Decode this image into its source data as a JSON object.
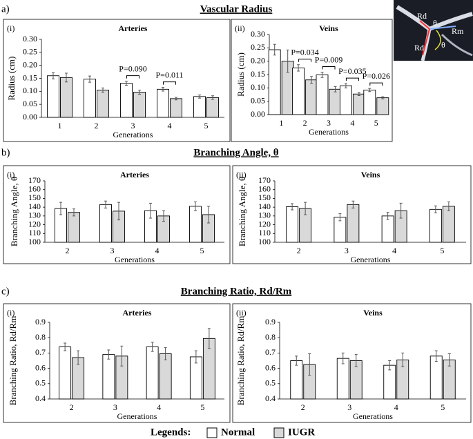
{
  "sections": [
    {
      "label": "a)",
      "title": "Vascular Radius"
    },
    {
      "label": "b)",
      "title": "Branching Angle, θ"
    },
    {
      "label": "c)",
      "title": "Branching Ratio, Rd/Rm"
    }
  ],
  "inset": {
    "labels": [
      "Rd",
      "θ",
      "Rm",
      "Rd",
      "θ"
    ]
  },
  "legend": {
    "title": "Legends:"
  },
  "chart_data": [
    {
      "type": "bar",
      "panel_label": "(i)",
      "title": "Arteries",
      "ylabel": "Radius (cm)",
      "xlabel": "Generations",
      "categories": [
        "1",
        "2",
        "3",
        "4",
        "5"
      ],
      "series": [
        {
          "name": "Normal",
          "color": "#ffffff",
          "values": [
            0.16,
            0.147,
            0.131,
            0.108,
            0.08
          ],
          "errors": [
            0.012,
            0.012,
            0.008,
            0.007,
            0.006
          ]
        },
        {
          "name": "IUGR",
          "color": "#d9d9d9",
          "values": [
            0.153,
            0.105,
            0.097,
            0.072,
            0.076
          ],
          "errors": [
            0.017,
            0.008,
            0.008,
            0.005,
            0.007
          ]
        }
      ],
      "ylim": [
        0,
        0.3
      ],
      "yticks": [
        {
          "value": 0,
          "label": "0.00"
        },
        {
          "value": 0.05,
          "label": "0.05"
        },
        {
          "value": 0.1,
          "label": "0.10"
        },
        {
          "value": 0.15,
          "label": "0.15"
        },
        {
          "value": 0.2,
          "label": "0.20"
        },
        {
          "value": 0.25,
          "label": "0.25"
        },
        {
          "value": 0.3,
          "label": "0.30"
        }
      ],
      "annotations": [
        {
          "x": "3",
          "text": "P=0.090"
        },
        {
          "x": "4",
          "text": "P=0.011"
        }
      ]
    },
    {
      "type": "bar",
      "panel_label": "(ii)",
      "title": "Veins",
      "ylabel": "Radius (cm)",
      "xlabel": "Generations",
      "categories": [
        "1",
        "2",
        "3",
        "4",
        "5"
      ],
      "series": [
        {
          "name": "Normal",
          "color": "#ffffff",
          "values": [
            0.243,
            0.175,
            0.149,
            0.108,
            0.092
          ],
          "errors": [
            0.02,
            0.012,
            0.01,
            0.008,
            0.006
          ]
        },
        {
          "name": "IUGR",
          "color": "#d9d9d9",
          "values": [
            0.2,
            0.13,
            0.095,
            0.077,
            0.063
          ],
          "errors": [
            0.042,
            0.013,
            0.01,
            0.006,
            0.004
          ]
        }
      ],
      "ylim": [
        0,
        0.3
      ],
      "yticks": [
        {
          "value": 0,
          "label": "0.00"
        },
        {
          "value": 0.05,
          "label": "0.05"
        },
        {
          "value": 0.1,
          "label": "0.10"
        },
        {
          "value": 0.15,
          "label": "0.15"
        },
        {
          "value": 0.2,
          "label": "0.20"
        },
        {
          "value": 0.25,
          "label": "0.25"
        },
        {
          "value": 0.3,
          "label": "0.30"
        }
      ],
      "annotations": [
        {
          "x": "2",
          "text": "P=0.034"
        },
        {
          "x": "3",
          "text": "P=0.009"
        },
        {
          "x": "4",
          "text": "P=0.035"
        },
        {
          "x": "5",
          "text": "P=0.026"
        }
      ]
    },
    {
      "type": "bar",
      "panel_label": "(i)",
      "title": "Arteries",
      "ylabel": "Branching Angle, θ",
      "xlabel": "Generations",
      "categories": [
        "2",
        "3",
        "4",
        "5"
      ],
      "series": [
        {
          "name": "Normal",
          "color": "#ffffff",
          "values": [
            138.5,
            143,
            136,
            141
          ],
          "errors": [
            7,
            4,
            8.5,
            5
          ]
        },
        {
          "name": "IUGR",
          "color": "#d9d9d9",
          "values": [
            134,
            135.5,
            130,
            131.5
          ],
          "errors": [
            4,
            10,
            6,
            9.5
          ]
        }
      ],
      "ylim": [
        100,
        170
      ],
      "yticks": [
        100,
        110,
        120,
        130,
        140,
        150,
        160,
        170
      ]
    },
    {
      "type": "bar",
      "panel_label": "(ii)",
      "title": "Veins",
      "ylabel": "Branching Angle, θ",
      "xlabel": "Generations",
      "categories": [
        "2",
        "3",
        "4",
        "5"
      ],
      "series": [
        {
          "name": "Normal",
          "color": "#ffffff",
          "values": [
            140.5,
            128.5,
            130,
            137.5
          ],
          "errors": [
            3.5,
            4,
            4,
            4
          ]
        },
        {
          "name": "IUGR",
          "color": "#d9d9d9",
          "values": [
            138.5,
            143,
            136,
            141
          ],
          "errors": [
            7,
            4,
            8.5,
            5
          ]
        }
      ],
      "ylim": [
        100,
        170
      ],
      "yticks": [
        100,
        110,
        120,
        130,
        140,
        150,
        160,
        170
      ]
    },
    {
      "type": "bar",
      "panel_label": "(i)",
      "title": "Arteries",
      "ylabel": "Branching Ratio, Rd/Rm",
      "xlabel": "Generations",
      "categories": [
        "2",
        "3",
        "4",
        "5"
      ],
      "series": [
        {
          "name": "Normal",
          "color": "#ffffff",
          "values": [
            0.74,
            0.69,
            0.74,
            0.675
          ],
          "errors": [
            0.025,
            0.03,
            0.03,
            0.04
          ]
        },
        {
          "name": "IUGR",
          "color": "#d9d9d9",
          "values": [
            0.67,
            0.68,
            0.695,
            0.795
          ],
          "errors": [
            0.045,
            0.065,
            0.04,
            0.065
          ]
        }
      ],
      "ylim": [
        0.4,
        0.9
      ],
      "yticks": [
        0.4,
        0.5,
        0.6,
        0.7,
        0.8,
        0.9
      ]
    },
    {
      "type": "bar",
      "panel_label": "(ii)",
      "title": "Veins",
      "ylabel": "Branching Ratio, Rd/Rm",
      "xlabel": "Generations",
      "categories": [
        "2",
        "3",
        "4",
        "5"
      ],
      "series": [
        {
          "name": "Normal",
          "color": "#ffffff",
          "values": [
            0.65,
            0.665,
            0.62,
            0.68
          ],
          "errors": [
            0.03,
            0.035,
            0.03,
            0.035
          ]
        },
        {
          "name": "IUGR",
          "color": "#d9d9d9",
          "values": [
            0.625,
            0.65,
            0.655,
            0.655
          ],
          "errors": [
            0.07,
            0.04,
            0.045,
            0.04
          ]
        }
      ],
      "ylim": [
        0.4,
        0.9
      ],
      "yticks": [
        0.4,
        0.5,
        0.6,
        0.7,
        0.8,
        0.9
      ]
    }
  ]
}
